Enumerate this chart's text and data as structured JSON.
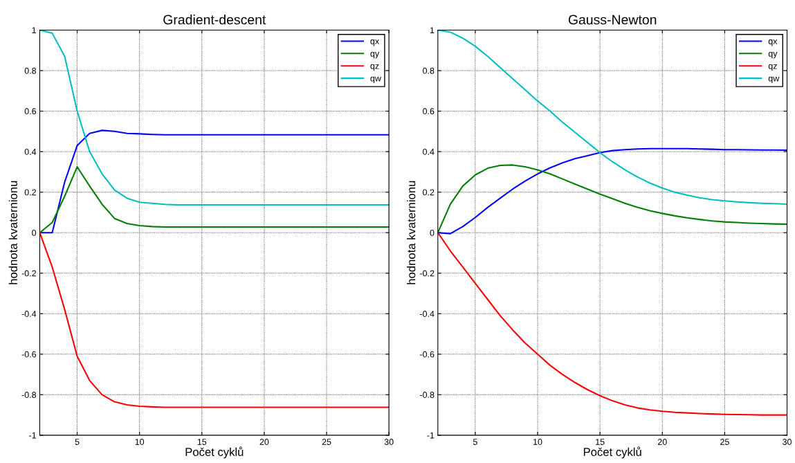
{
  "chart_data": [
    {
      "type": "line",
      "title": "Gradient-descent",
      "xlabel": "Počet cyklů",
      "ylabel": "hodnota kvaternionu",
      "x": [
        2,
        3,
        4,
        5,
        6,
        7,
        8,
        9,
        10,
        11,
        12,
        13,
        14,
        15,
        16,
        17,
        18,
        19,
        20,
        21,
        22,
        23,
        24,
        25,
        26,
        27,
        28,
        29,
        30
      ],
      "xlim": [
        2,
        30
      ],
      "xticks": [
        5,
        10,
        15,
        20,
        25,
        30
      ],
      "ylim": [
        -1,
        1
      ],
      "yticks": [
        -1,
        -0.8,
        -0.6,
        -0.4,
        -0.2,
        0,
        0.2,
        0.4,
        0.6,
        0.8,
        1
      ],
      "grid": true,
      "legend": "top right",
      "series": [
        {
          "name": "qx",
          "color": "#0000ff",
          "values": [
            0,
            0,
            0.25,
            0.43,
            0.49,
            0.505,
            0.5,
            0.49,
            0.488,
            0.485,
            0.483,
            0.483,
            0.483,
            0.483,
            0.483,
            0.483,
            0.483,
            0.483,
            0.483,
            0.483,
            0.483,
            0.483,
            0.483,
            0.483,
            0.483,
            0.483,
            0.483,
            0.483,
            0.483
          ]
        },
        {
          "name": "qy",
          "color": "#008000",
          "values": [
            0,
            0.05,
            0.18,
            0.325,
            0.23,
            0.14,
            0.07,
            0.045,
            0.035,
            0.03,
            0.028,
            0.028,
            0.028,
            0.028,
            0.028,
            0.028,
            0.028,
            0.028,
            0.028,
            0.028,
            0.028,
            0.028,
            0.028,
            0.028,
            0.028,
            0.028,
            0.028,
            0.028,
            0.028
          ]
        },
        {
          "name": "qz",
          "color": "#ff0000",
          "values": [
            0,
            -0.17,
            -0.38,
            -0.61,
            -0.73,
            -0.8,
            -0.835,
            -0.85,
            -0.857,
            -0.86,
            -0.862,
            -0.862,
            -0.862,
            -0.862,
            -0.862,
            -0.862,
            -0.862,
            -0.862,
            -0.862,
            -0.862,
            -0.862,
            -0.862,
            -0.862,
            -0.862,
            -0.862,
            -0.862,
            -0.862,
            -0.862,
            -0.862
          ]
        },
        {
          "name": "qw",
          "color": "#00bfbf",
          "values": [
            1,
            0.985,
            0.87,
            0.6,
            0.4,
            0.29,
            0.21,
            0.17,
            0.15,
            0.145,
            0.14,
            0.137,
            0.137,
            0.137,
            0.137,
            0.137,
            0.137,
            0.137,
            0.137,
            0.137,
            0.137,
            0.137,
            0.137,
            0.137,
            0.137,
            0.137,
            0.137,
            0.137,
            0.137
          ]
        }
      ]
    },
    {
      "type": "line",
      "title": "Gauss-Newton",
      "xlabel": "Počet cyklů",
      "ylabel": "hodnota kvaternionu",
      "x": [
        2,
        3,
        4,
        5,
        6,
        7,
        8,
        9,
        10,
        11,
        12,
        13,
        14,
        15,
        16,
        17,
        18,
        19,
        20,
        21,
        22,
        23,
        24,
        25,
        26,
        27,
        28,
        29,
        30
      ],
      "xlim": [
        2,
        30
      ],
      "xticks": [
        5,
        10,
        15,
        20,
        25,
        30
      ],
      "ylim": [
        -1,
        1
      ],
      "yticks": [
        -1,
        -0.8,
        -0.6,
        -0.4,
        -0.2,
        0,
        0.2,
        0.4,
        0.6,
        0.8,
        1
      ],
      "grid": true,
      "legend": "top right",
      "series": [
        {
          "name": "qx",
          "color": "#0000ff",
          "values": [
            0,
            -0.005,
            0.03,
            0.075,
            0.125,
            0.17,
            0.215,
            0.255,
            0.29,
            0.32,
            0.345,
            0.365,
            0.38,
            0.395,
            0.405,
            0.41,
            0.413,
            0.415,
            0.415,
            0.415,
            0.415,
            0.413,
            0.412,
            0.41,
            0.41,
            0.409,
            0.408,
            0.408,
            0.407
          ]
        },
        {
          "name": "qy",
          "color": "#008000",
          "values": [
            0,
            0.14,
            0.23,
            0.285,
            0.318,
            0.332,
            0.334,
            0.325,
            0.31,
            0.29,
            0.265,
            0.24,
            0.215,
            0.19,
            0.168,
            0.145,
            0.125,
            0.108,
            0.095,
            0.083,
            0.073,
            0.065,
            0.058,
            0.053,
            0.05,
            0.047,
            0.045,
            0.043,
            0.042
          ]
        },
        {
          "name": "qz",
          "color": "#ff0000",
          "values": [
            0,
            -0.09,
            -0.17,
            -0.25,
            -0.33,
            -0.41,
            -0.48,
            -0.545,
            -0.6,
            -0.655,
            -0.7,
            -0.74,
            -0.775,
            -0.805,
            -0.83,
            -0.85,
            -0.865,
            -0.875,
            -0.882,
            -0.887,
            -0.89,
            -0.893,
            -0.895,
            -0.897,
            -0.898,
            -0.899,
            -0.9,
            -0.9,
            -0.9
          ]
        },
        {
          "name": "qw",
          "color": "#00bfbf",
          "values": [
            1,
            0.99,
            0.96,
            0.92,
            0.87,
            0.815,
            0.76,
            0.705,
            0.65,
            0.6,
            0.545,
            0.495,
            0.445,
            0.395,
            0.35,
            0.31,
            0.275,
            0.245,
            0.22,
            0.2,
            0.185,
            0.172,
            0.163,
            0.157,
            0.152,
            0.148,
            0.145,
            0.143,
            0.141
          ]
        }
      ]
    }
  ]
}
